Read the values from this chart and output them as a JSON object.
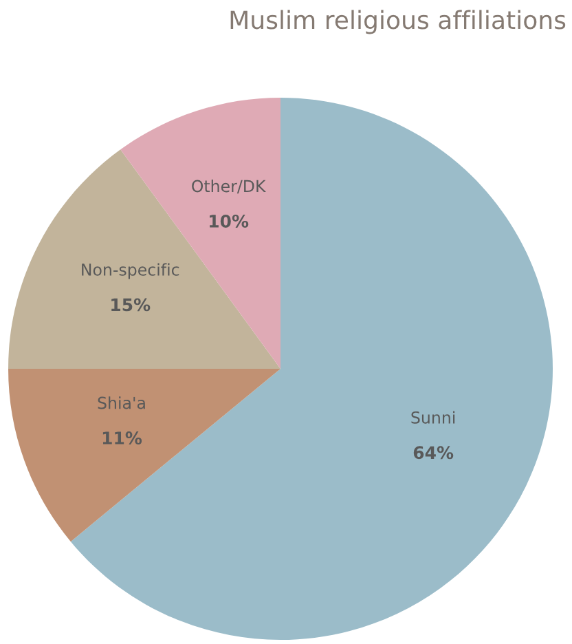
{
  "chart_data": {
    "type": "pie",
    "title": "Muslim religious affiliations",
    "categories": [
      "Sunni",
      "Shia'a",
      "Non-specific",
      "Other/DK"
    ],
    "values": [
      64,
      11,
      15,
      10
    ],
    "value_labels": [
      "64%",
      "11%",
      "15%",
      "10%"
    ],
    "colors": [
      "#9bbcc9",
      "#c19173",
      "#c2b49b",
      "#dfaab5"
    ]
  }
}
